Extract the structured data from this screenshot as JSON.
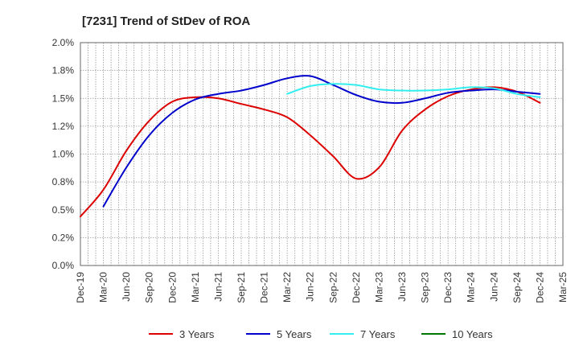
{
  "chart_data": {
    "type": "line",
    "title": "[7231]  Trend of StDev of ROA",
    "xlabel": "",
    "ylabel": "",
    "x": [
      "Dec-19",
      "Mar-20",
      "Jun-20",
      "Sep-20",
      "Dec-20",
      "Mar-21",
      "Jun-21",
      "Sep-21",
      "Dec-21",
      "Mar-22",
      "Jun-22",
      "Sep-22",
      "Dec-22",
      "Mar-23",
      "Jun-23",
      "Sep-23",
      "Dec-23",
      "Mar-24",
      "Jun-24",
      "Sep-24",
      "Dec-24",
      "Mar-25"
    ],
    "ylim": [
      0,
      2.0
    ],
    "yticks": [
      "0.0%",
      "0.2%",
      "0.5%",
      "0.8%",
      "1.0%",
      "1.2%",
      "1.5%",
      "1.8%",
      "2.0%"
    ],
    "grid": true,
    "legend_position": "bottom",
    "series": [
      {
        "name": "3 Years",
        "color": "#dd0000",
        "values": [
          0.44,
          0.68,
          1.03,
          1.3,
          1.47,
          1.51,
          1.5,
          1.45,
          1.4,
          1.33,
          1.17,
          0.98,
          0.78,
          0.88,
          1.21,
          1.4,
          1.52,
          1.58,
          1.6,
          1.56,
          1.46,
          null
        ]
      },
      {
        "name": "5 Years",
        "color": "#0000cc",
        "values": [
          null,
          0.53,
          0.88,
          1.17,
          1.37,
          1.49,
          1.54,
          1.57,
          1.62,
          1.68,
          1.7,
          1.62,
          1.53,
          1.47,
          1.46,
          1.5,
          1.55,
          1.57,
          1.58,
          1.56,
          1.54,
          null
        ]
      },
      {
        "name": "7 Years",
        "color": "#33eeee",
        "values": [
          null,
          null,
          null,
          null,
          null,
          null,
          null,
          null,
          null,
          1.54,
          1.61,
          1.63,
          1.62,
          1.58,
          1.57,
          1.57,
          1.58,
          1.6,
          1.59,
          1.54,
          1.51,
          null
        ]
      },
      {
        "name": "10 Years",
        "color": "#007700",
        "values": [
          null,
          null,
          null,
          null,
          null,
          null,
          null,
          null,
          null,
          null,
          null,
          null,
          null,
          null,
          null,
          null,
          null,
          null,
          null,
          null,
          null,
          null
        ]
      }
    ]
  }
}
